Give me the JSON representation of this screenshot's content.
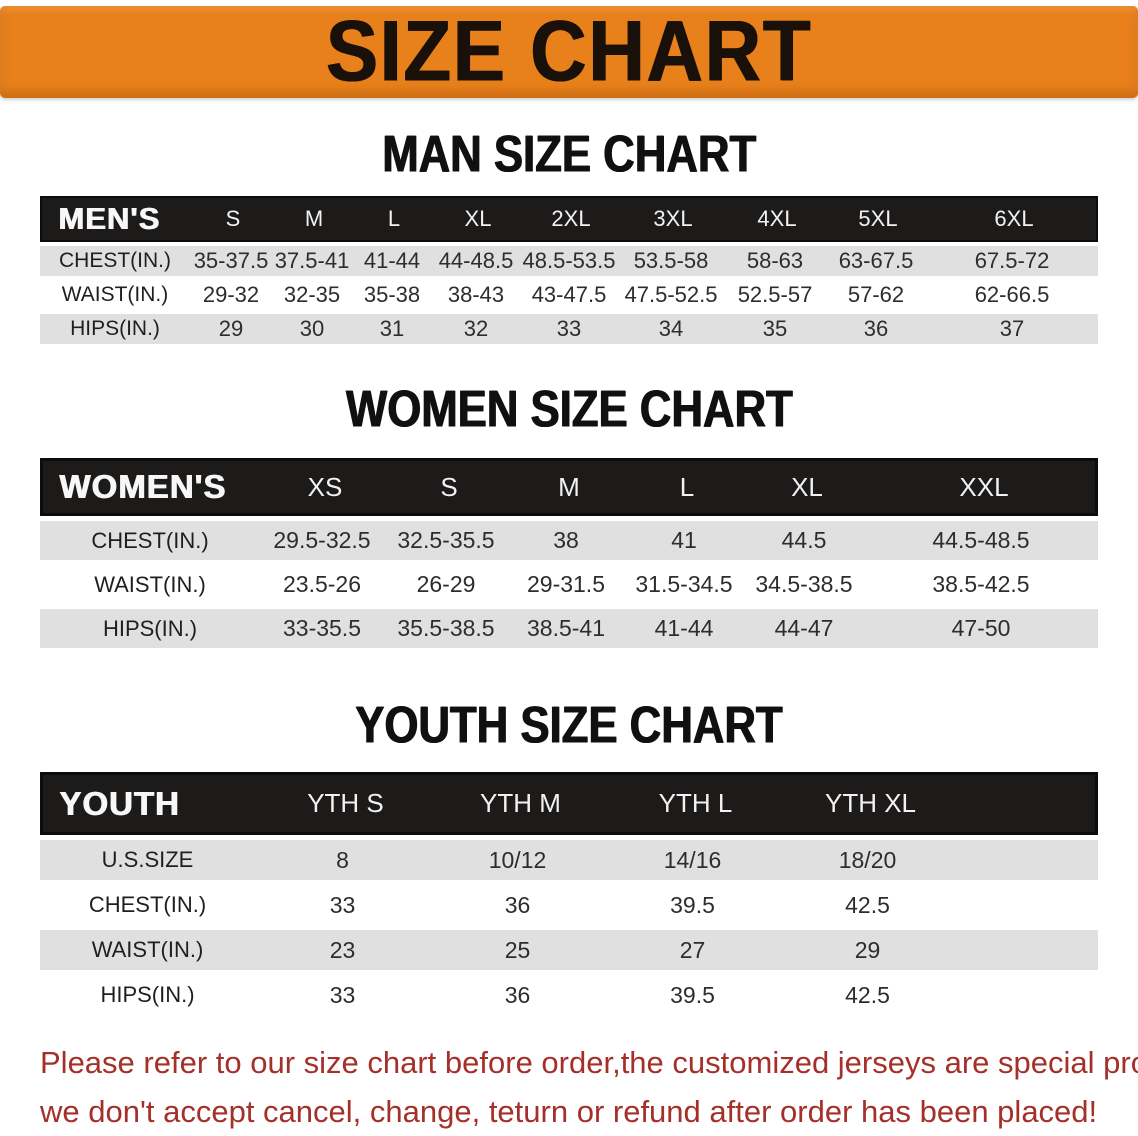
{
  "banner": {
    "title": "SIZE CHART",
    "background": "#e8801b",
    "text_color": "#191009"
  },
  "colors": {
    "table_header_black": "#1d1a1a",
    "row_stripe_gray": "#e0e0e0",
    "note_red": "#a5302a"
  },
  "sections": [
    {
      "heading": "MAN SIZE CHART",
      "group_label": "MEN'S",
      "sizes": [
        "S",
        "M",
        "L",
        "XL",
        "2XL",
        "3XL",
        "4XL",
        "5XL",
        "6XL"
      ],
      "rows": [
        {
          "label": "CHEST(IN.)",
          "values": [
            "35-37.5",
            "37.5-41",
            "41-44",
            "44-48.5",
            "48.5-53.5",
            "53.5-58",
            "58-63",
            "63-67.5",
            "67.5-72"
          ]
        },
        {
          "label": "WAIST(IN.)",
          "values": [
            "29-32",
            "32-35",
            "35-38",
            "38-43",
            "43-47.5",
            "47.5-52.5",
            "52.5-57",
            "57-62",
            "62-66.5"
          ]
        },
        {
          "label": "HIPS(IN.)",
          "values": [
            "29",
            "30",
            "31",
            "32",
            "33",
            "34",
            "35",
            "36",
            "37"
          ]
        }
      ]
    },
    {
      "heading": "WOMEN SIZE CHART",
      "group_label": "WOMEN'S",
      "sizes": [
        "XS",
        "S",
        "M",
        "L",
        "XL",
        "XXL"
      ],
      "rows": [
        {
          "label": "CHEST(IN.)",
          "values": [
            "29.5-32.5",
            "32.5-35.5",
            "38",
            "41",
            "44.5",
            "44.5-48.5"
          ]
        },
        {
          "label": "WAIST(IN.)",
          "values": [
            "23.5-26",
            "26-29",
            "29-31.5",
            "31.5-34.5",
            "34.5-38.5",
            "38.5-42.5"
          ]
        },
        {
          "label": "HIPS(IN.)",
          "values": [
            "33-35.5",
            "35.5-38.5",
            "38.5-41",
            "41-44",
            "44-47",
            "47-50"
          ]
        }
      ]
    },
    {
      "heading": "YOUTH SIZE CHART",
      "group_label": "YOUTH",
      "sizes": [
        "YTH S",
        "YTH M",
        "YTH L",
        "YTH XL"
      ],
      "rows": [
        {
          "label": "U.S.SIZE",
          "values": [
            "8",
            "10/12",
            "14/16",
            "18/20"
          ]
        },
        {
          "label": "CHEST(IN.)",
          "values": [
            "33",
            "36",
            "39.5",
            "42.5"
          ]
        },
        {
          "label": "WAIST(IN.)",
          "values": [
            "23",
            "25",
            "27",
            "29"
          ]
        },
        {
          "label": "HIPS(IN.)",
          "values": [
            "33",
            "36",
            "39.5",
            "42.5"
          ]
        }
      ]
    }
  ],
  "note": {
    "line1": "Please refer to our size chart before order,the customized jerseys are special products,",
    "line2": "we don't accept cancel, change, teturn or refund after order has been placed!"
  }
}
